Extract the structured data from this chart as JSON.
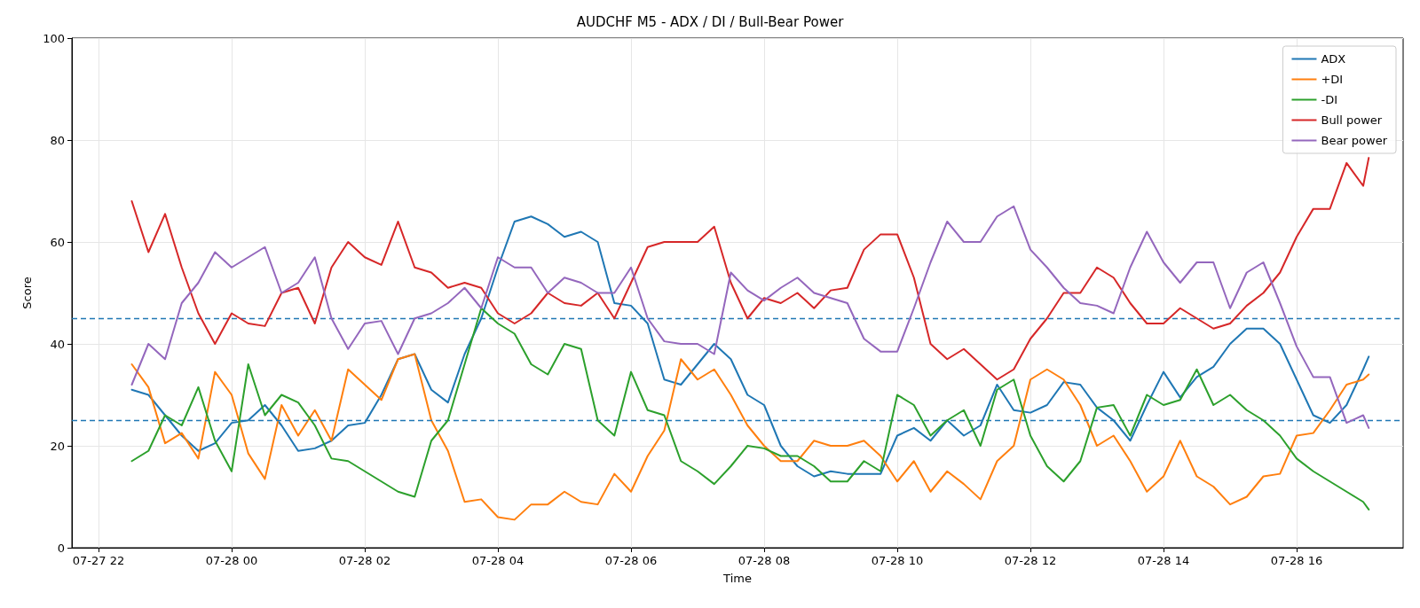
{
  "chart_data": {
    "type": "line",
    "title": "AUDCHF M5 - ADX / DI / Bull-Bear Power",
    "xlabel": "Time",
    "ylabel": "Score",
    "x": [
      "--07-27T22:30",
      "--07-27T22:45",
      "--07-27T23:00",
      "--07-27T23:15",
      "--07-27T23:30",
      "--07-27T23:45",
      "--07-28T00:00",
      "--07-28T00:15",
      "--07-28T00:30",
      "--07-28T00:45",
      "--07-28T01:00",
      "--07-28T01:15",
      "--07-28T01:30",
      "--07-28T01:45",
      "--07-28T02:00",
      "--07-28T02:15",
      "--07-28T02:30",
      "--07-28T02:45",
      "--07-28T03:00",
      "--07-28T03:15",
      "--07-28T03:30",
      "--07-28T03:45",
      "--07-28T04:00",
      "--07-28T04:15",
      "--07-28T04:30",
      "--07-28T04:45",
      "--07-28T05:00",
      "--07-28T05:15",
      "--07-28T05:30",
      "--07-28T05:45",
      "--07-28T06:00",
      "--07-28T06:15",
      "--07-28T06:30",
      "--07-28T06:45",
      "--07-28T07:00",
      "--07-28T07:15",
      "--07-28T07:30",
      "--07-28T07:45",
      "--07-28T08:00",
      "--07-28T08:15",
      "--07-28T08:30",
      "--07-28T08:45",
      "--07-28T09:00",
      "--07-28T09:15",
      "--07-28T09:30",
      "--07-28T09:45",
      "--07-28T10:00",
      "--07-28T10:15",
      "--07-28T10:30",
      "--07-28T10:45",
      "--07-28T11:00",
      "--07-28T11:15",
      "--07-28T11:30",
      "--07-28T11:45",
      "--07-28T12:00",
      "--07-28T12:15",
      "--07-28T12:30",
      "--07-28T12:45",
      "--07-28T13:00",
      "--07-28T13:15",
      "--07-28T13:30",
      "--07-28T13:45",
      "--07-28T14:00",
      "--07-28T14:15",
      "--07-28T14:30",
      "--07-28T14:45",
      "--07-28T15:00",
      "--07-28T15:15",
      "--07-28T15:30",
      "--07-28T15:45",
      "--07-28T16:00",
      "--07-28T16:15",
      "--07-28T16:30",
      "--07-28T16:45",
      "--07-28T17:00",
      "--07-28T17:05"
    ],
    "series": [
      {
        "name": "ADX",
        "color": "#1f77b4",
        "values": [
          31,
          30,
          26,
          22,
          19,
          20.5,
          24.5,
          25,
          28,
          24,
          19,
          19.5,
          21,
          24,
          24.5,
          30,
          37,
          38,
          31,
          28.5,
          38,
          45,
          55,
          64,
          65,
          63.5,
          61,
          62,
          60,
          48,
          47.5,
          44,
          33,
          32,
          36,
          40,
          37,
          30,
          28,
          20,
          16,
          14,
          15,
          14.5,
          14.5,
          14.5,
          22,
          23.5,
          21,
          25,
          22,
          24,
          32,
          27,
          26.5,
          28,
          32.5,
          32,
          27.5,
          25,
          21,
          28,
          34.5,
          29.5,
          33.5,
          35.5,
          40,
          43,
          43,
          40,
          33,
          26,
          24.5,
          28,
          35,
          37.5
        ]
      },
      {
        "name": "+DI",
        "color": "#ff7f0e",
        "values": [
          36,
          31.5,
          20.5,
          22.5,
          17.5,
          34.5,
          30,
          18.5,
          13.5,
          28,
          22,
          27,
          21,
          35,
          32,
          29,
          37,
          38,
          25,
          19,
          9,
          9.5,
          6,
          5.5,
          8.5,
          8.5,
          11,
          9,
          8.5,
          14.5,
          11,
          18,
          23,
          37,
          33,
          35,
          30,
          24,
          20,
          17,
          17,
          21,
          20,
          20,
          21,
          18,
          13,
          17,
          11,
          15,
          12.5,
          9.5,
          17,
          20,
          33,
          35,
          33,
          28,
          20,
          22,
          17,
          11,
          14,
          21,
          14,
          12,
          8.5,
          10,
          14,
          14.5,
          22,
          22.5,
          27,
          32,
          33,
          34
        ]
      },
      {
        "name": "-DI",
        "color": "#2ca02c",
        "values": [
          17,
          19,
          26,
          24,
          31.5,
          21,
          15,
          36,
          26,
          30,
          28.5,
          24,
          17.5,
          17,
          15,
          13,
          11,
          10,
          21,
          25,
          36,
          47,
          44,
          42,
          36,
          34,
          40,
          39,
          25,
          22,
          34.5,
          27,
          26,
          17,
          15,
          12.5,
          16,
          20,
          19.5,
          18,
          18,
          16,
          13,
          13,
          17,
          15,
          30,
          28,
          22,
          25,
          27,
          20,
          31,
          33,
          22,
          16,
          13,
          17,
          27.5,
          28,
          22,
          30,
          28,
          29,
          35,
          28,
          30,
          27,
          25,
          22,
          17.5,
          15,
          13,
          11,
          9,
          7.5
        ]
      },
      {
        "name": "Bull power",
        "color": "#d62728",
        "values": [
          68,
          58,
          65.5,
          55,
          46,
          40,
          46,
          44,
          43.5,
          50,
          51,
          44,
          55,
          60,
          57,
          55.5,
          64,
          55,
          54,
          51,
          52,
          51,
          46,
          44,
          46,
          50,
          48,
          47.5,
          50,
          45,
          52,
          59,
          60,
          60,
          60,
          63,
          52,
          45,
          49,
          48,
          50,
          47,
          50.5,
          51,
          58.5,
          61.5,
          61.5,
          53,
          40,
          37,
          39,
          36,
          33,
          35,
          41,
          45,
          50,
          50,
          55,
          53,
          48,
          44,
          44,
          47,
          45,
          43,
          44,
          47.5,
          50,
          54,
          61,
          66.5,
          66.5,
          75.5,
          71,
          76.5
        ]
      },
      {
        "name": "Bear power",
        "color": "#9467bd",
        "values": [
          32,
          40,
          37,
          48,
          52,
          58,
          55,
          57,
          59,
          50,
          52,
          57,
          45,
          39,
          44,
          44.5,
          38,
          45,
          46,
          48,
          51,
          47,
          57,
          55,
          55,
          50,
          53,
          52,
          50,
          50,
          55,
          45,
          40.5,
          40,
          40,
          38,
          54,
          50.5,
          48.5,
          51,
          53,
          50,
          49,
          48,
          41,
          38.5,
          38.5,
          47,
          56,
          64,
          60,
          60,
          65,
          67,
          58.5,
          55,
          51,
          48,
          47.5,
          46,
          55,
          62,
          56,
          52,
          56,
          56,
          47,
          54,
          56,
          48,
          39.5,
          33.5,
          33.5,
          24.5,
          26,
          23.5
        ]
      }
    ],
    "xlim": [
      "--07-27T21:36",
      "--07-28T17:36"
    ],
    "xticks": [
      {
        "value": "--07-27T22:00",
        "label": "07-27 22"
      },
      {
        "value": "--07-28T00:00",
        "label": "07-28 00"
      },
      {
        "value": "--07-28T02:00",
        "label": "07-28 02"
      },
      {
        "value": "--07-28T04:00",
        "label": "07-28 04"
      },
      {
        "value": "--07-28T06:00",
        "label": "07-28 06"
      },
      {
        "value": "--07-28T08:00",
        "label": "07-28 08"
      },
      {
        "value": "--07-28T10:00",
        "label": "07-28 10"
      },
      {
        "value": "--07-28T12:00",
        "label": "07-28 12"
      },
      {
        "value": "--07-28T14:00",
        "label": "07-28 14"
      },
      {
        "value": "--07-28T16:00",
        "label": "07-28 16"
      }
    ],
    "ylim": [
      0,
      100
    ],
    "yticks": [
      0,
      20,
      40,
      60,
      80,
      100
    ],
    "ref_lines": [
      {
        "axis": "y",
        "value": 45,
        "color": "#1f77b4",
        "line_style": "dashed"
      },
      {
        "axis": "y",
        "value": 25,
        "color": "#1f77b4",
        "line_style": "dashed"
      }
    ],
    "grid": true,
    "legend": "top right",
    "marker": "none",
    "line_style": "solid"
  }
}
